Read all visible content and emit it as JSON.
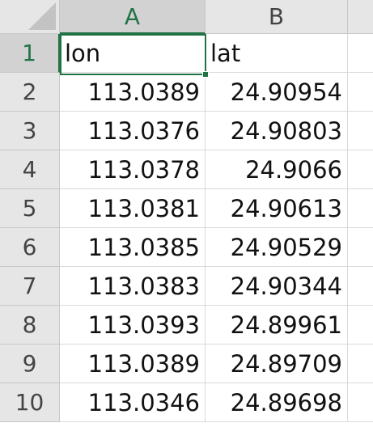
{
  "columns": [
    {
      "label": "A",
      "selected": true
    },
    {
      "label": "B",
      "selected": false
    },
    {
      "label": "",
      "selected": false
    }
  ],
  "rows": [
    {
      "number": "1",
      "a": "lon",
      "b": "lat",
      "type": "text"
    },
    {
      "number": "2",
      "a": "113.0389",
      "b": "24.90954",
      "type": "num"
    },
    {
      "number": "3",
      "a": "113.0376",
      "b": "24.90803",
      "type": "num"
    },
    {
      "number": "4",
      "a": "113.0378",
      "b": "24.9066",
      "type": "num"
    },
    {
      "number": "5",
      "a": "113.0381",
      "b": "24.90613",
      "type": "num"
    },
    {
      "number": "6",
      "a": "113.0385",
      "b": "24.90529",
      "type": "num"
    },
    {
      "number": "7",
      "a": "113.0383",
      "b": "24.90344",
      "type": "num"
    },
    {
      "number": "8",
      "a": "113.0393",
      "b": "24.89961",
      "type": "num"
    },
    {
      "number": "9",
      "a": "113.0389",
      "b": "24.89709",
      "type": "num"
    },
    {
      "number": "10",
      "a": "113.0346",
      "b": "24.89698",
      "type": "num"
    }
  ],
  "colors": {
    "accent": "#217346",
    "header_bg": "#e6e6e6",
    "header_selected_bg": "#d2d2d2",
    "grid": "#dadada"
  },
  "active_cell": "A1"
}
